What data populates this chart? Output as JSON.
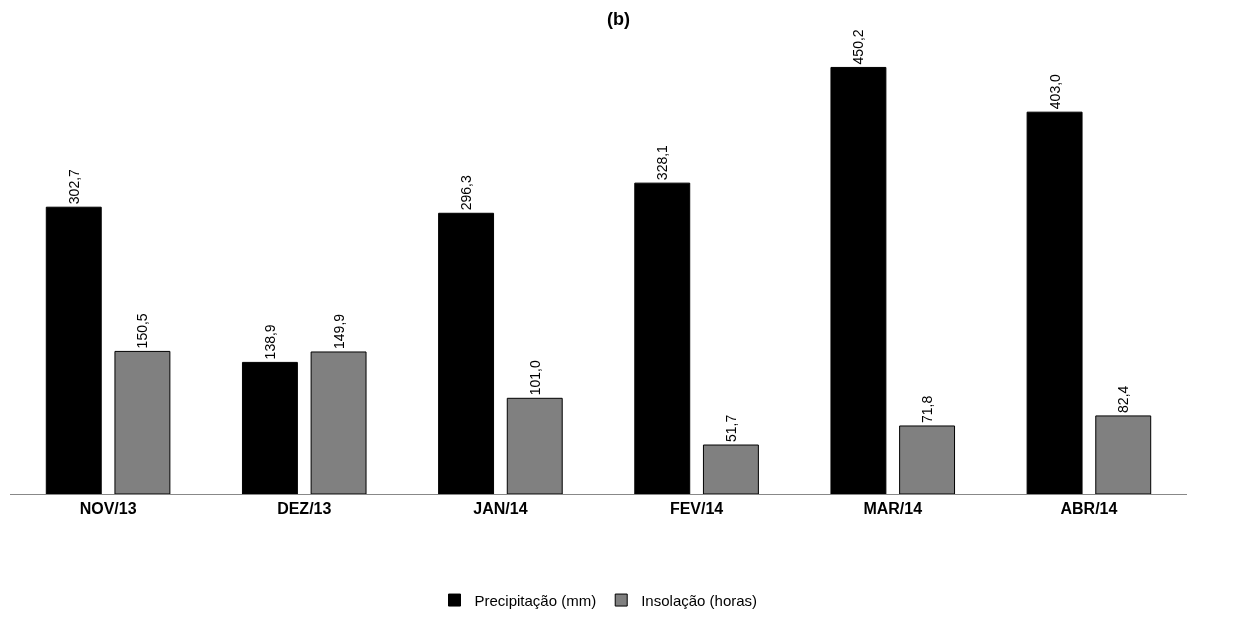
{
  "chart_data": {
    "type": "bar",
    "title": "(b)",
    "categories": [
      "NOV/13",
      "DEZ/13",
      "JAN/14",
      "FEV/14",
      "MAR/14",
      "ABR/14"
    ],
    "series": [
      {
        "name": "Precipitação (mm)",
        "color": "#000000",
        "values": [
          302.7,
          138.9,
          296.3,
          328.1,
          450.2,
          403.0
        ],
        "value_labels": [
          "302,7",
          "138,9",
          "296,3",
          "328,1",
          "450,2",
          "403,0"
        ]
      },
      {
        "name": "Insolação (horas)",
        "color": "#808080",
        "values": [
          150.5,
          149.9,
          101.0,
          51.7,
          71.8,
          82.4
        ],
        "value_labels": [
          "150,5",
          "149,9",
          "101,0",
          "51,7",
          "71,8",
          "82,4"
        ]
      }
    ],
    "legend": "bottom"
  }
}
